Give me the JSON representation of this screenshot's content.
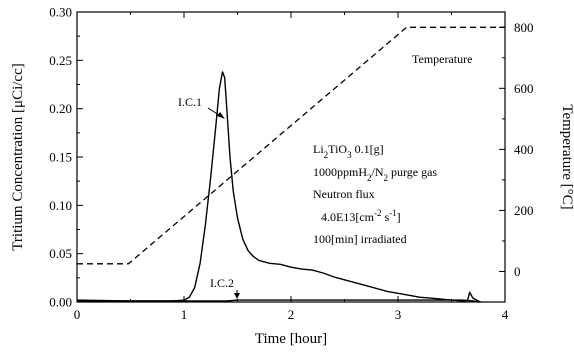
{
  "chart_data": {
    "type": "line",
    "x": {
      "label": "Time [hour]",
      "range": [
        0,
        4
      ],
      "ticks": [
        "0",
        "1",
        "2",
        "3",
        "4"
      ]
    },
    "y_left": {
      "label": "Tritium Concentration [μCi/cc]",
      "range": [
        0,
        0.3
      ],
      "ticks": [
        "0.00",
        "0.05",
        "0.10",
        "0.15",
        "0.20",
        "0.25",
        "0.30"
      ]
    },
    "y_right": {
      "label": "Temperature [°C]",
      "range": [
        -100,
        850
      ],
      "ticks": [
        "0",
        "200",
        "400",
        "600",
        "800"
      ]
    },
    "series": [
      {
        "name": "I.C.1",
        "axis": "left",
        "style": "solid",
        "points": [
          [
            0.0,
            0.002
          ],
          [
            0.5,
            0.001
          ],
          [
            0.9,
            0.001
          ],
          [
            1.0,
            0.002
          ],
          [
            1.05,
            0.005
          ],
          [
            1.1,
            0.015
          ],
          [
            1.15,
            0.04
          ],
          [
            1.2,
            0.08
          ],
          [
            1.25,
            0.13
          ],
          [
            1.3,
            0.185
          ],
          [
            1.33,
            0.22
          ],
          [
            1.36,
            0.238
          ],
          [
            1.38,
            0.232
          ],
          [
            1.4,
            0.2
          ],
          [
            1.43,
            0.15
          ],
          [
            1.46,
            0.115
          ],
          [
            1.5,
            0.087
          ],
          [
            1.55,
            0.065
          ],
          [
            1.6,
            0.053
          ],
          [
            1.65,
            0.047
          ],
          [
            1.7,
            0.043
          ],
          [
            1.8,
            0.04
          ],
          [
            1.9,
            0.039
          ],
          [
            2.0,
            0.036
          ],
          [
            2.1,
            0.034
          ],
          [
            2.2,
            0.033
          ],
          [
            2.3,
            0.03
          ],
          [
            2.4,
            0.026
          ],
          [
            2.5,
            0.023
          ],
          [
            2.6,
            0.02
          ],
          [
            2.7,
            0.017
          ],
          [
            2.8,
            0.014
          ],
          [
            2.9,
            0.011
          ],
          [
            3.0,
            0.009
          ],
          [
            3.1,
            0.007
          ],
          [
            3.2,
            0.005
          ],
          [
            3.3,
            0.004
          ],
          [
            3.4,
            0.003
          ],
          [
            3.5,
            0.002
          ],
          [
            3.62,
            0.001
          ],
          [
            3.65,
            0.002
          ],
          [
            3.67,
            0.01
          ],
          [
            3.7,
            0.004
          ],
          [
            3.75,
            0.001
          ],
          [
            3.77,
            0.0
          ]
        ]
      },
      {
        "name": "I.C.2",
        "axis": "left",
        "style": "solid",
        "points": [
          [
            0.0,
            0.001
          ],
          [
            1.0,
            0.001
          ],
          [
            1.4,
            0.001
          ],
          [
            1.5,
            0.002
          ],
          [
            2.0,
            0.002
          ],
          [
            2.5,
            0.002
          ],
          [
            3.0,
            0.002
          ],
          [
            3.6,
            0.002
          ],
          [
            3.7,
            0.001
          ],
          [
            3.77,
            0.0
          ]
        ]
      },
      {
        "name": "Temperature",
        "axis": "right",
        "style": "dashed",
        "points": [
          [
            0.0,
            25
          ],
          [
            0.48,
            25
          ],
          [
            3.08,
            800
          ],
          [
            4.0,
            800
          ]
        ]
      }
    ],
    "annotations": {
      "ic1": "I.C.1",
      "ic2": "I.C.2",
      "temperature": "Temperature",
      "condition_lines": [
        [
          "Li",
          "2",
          "TiO",
          "3",
          " 0.1[g]"
        ],
        [
          "1000ppmH",
          "2",
          "/N",
          "2",
          " purge gas"
        ],
        [
          "Neutron flux"
        ],
        [
          "4.0E13[cm",
          "-2",
          " s",
          "-1",
          "]"
        ],
        [
          "100[min] irradiated"
        ]
      ]
    }
  }
}
